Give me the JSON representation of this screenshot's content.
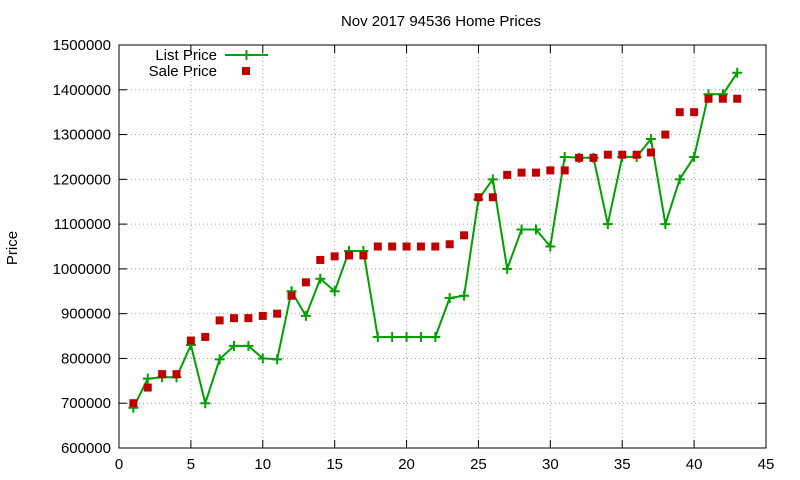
{
  "chart_data": {
    "type": "line",
    "title": "Nov 2017 94536 Home Prices",
    "xlabel": "",
    "ylabel": "Price",
    "xlim": [
      0,
      45
    ],
    "ylim": [
      600000,
      1500000
    ],
    "x_ticks": [
      0,
      5,
      10,
      15,
      20,
      25,
      30,
      35,
      40,
      45
    ],
    "y_ticks": [
      600000,
      700000,
      800000,
      900000,
      1000000,
      1100000,
      1200000,
      1300000,
      1400000,
      1500000
    ],
    "grid": true,
    "legend_position": "top-left",
    "series": [
      {
        "name": "List Price",
        "style": "line with plus markers",
        "color": "#00a000",
        "x": [
          1,
          2,
          3,
          4,
          5,
          6,
          7,
          8,
          9,
          10,
          11,
          12,
          13,
          14,
          15,
          16,
          17,
          18,
          19,
          20,
          21,
          22,
          23,
          24,
          25,
          26,
          27,
          28,
          29,
          30,
          31,
          32,
          33,
          34,
          35,
          36,
          37,
          38,
          39,
          40,
          41,
          42,
          43
        ],
        "y": [
          690000,
          755000,
          758000,
          758000,
          830000,
          700000,
          798000,
          828000,
          828000,
          800000,
          798000,
          950000,
          895000,
          978000,
          950000,
          1040000,
          1040000,
          848000,
          848000,
          848000,
          848000,
          848000,
          935000,
          940000,
          1155000,
          1200000,
          1000000,
          1088000,
          1088000,
          1050000,
          1250000,
          1248000,
          1248000,
          1100000,
          1250000,
          1250000,
          1290000,
          1100000,
          1200000,
          1250000,
          1390000,
          1390000,
          1438000
        ]
      },
      {
        "name": "Sale Price",
        "style": "square markers",
        "color": "#c00000",
        "x": [
          1,
          2,
          3,
          4,
          5,
          6,
          7,
          8,
          9,
          10,
          11,
          12,
          13,
          14,
          15,
          16,
          17,
          18,
          19,
          20,
          21,
          22,
          23,
          24,
          25,
          26,
          27,
          28,
          29,
          30,
          31,
          32,
          33,
          34,
          35,
          36,
          37,
          38,
          39,
          40,
          41,
          42,
          43
        ],
        "y": [
          700000,
          735000,
          765000,
          765000,
          840000,
          848000,
          885000,
          890000,
          890000,
          895000,
          900000,
          940000,
          970000,
          1020000,
          1028000,
          1030000,
          1030000,
          1050000,
          1050000,
          1050000,
          1050000,
          1050000,
          1055000,
          1075000,
          1160000,
          1160000,
          1210000,
          1215000,
          1215000,
          1220000,
          1220000,
          1248000,
          1248000,
          1255000,
          1255000,
          1255000,
          1260000,
          1300000,
          1350000,
          1350000,
          1380000,
          1380000,
          1380000
        ]
      }
    ]
  }
}
